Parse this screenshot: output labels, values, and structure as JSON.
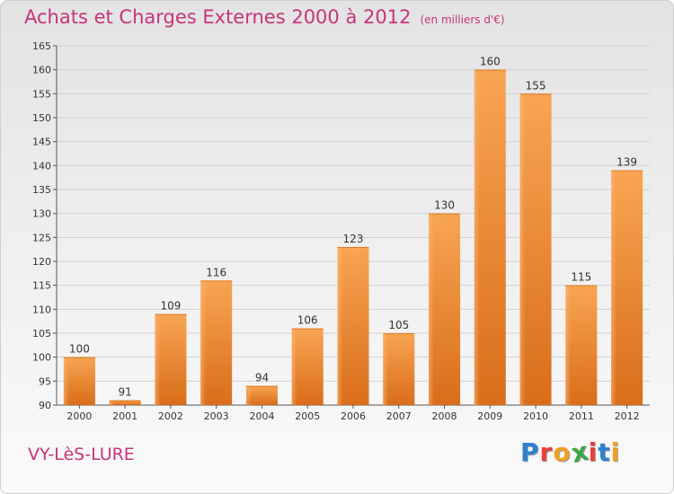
{
  "chart_data": {
    "type": "bar",
    "title": "Achats et Charges Externes 2000 à 2012",
    "subtitle": "(en milliers d'€)",
    "xlabel": "",
    "ylabel": "",
    "categories": [
      "2000",
      "2001",
      "2002",
      "2003",
      "2004",
      "2005",
      "2006",
      "2007",
      "2008",
      "2009",
      "2010",
      "2011",
      "2012"
    ],
    "values": [
      100,
      91,
      109,
      116,
      94,
      106,
      123,
      105,
      130,
      160,
      155,
      115,
      139
    ],
    "ylim": [
      90,
      165
    ],
    "yticks": [
      90,
      95,
      100,
      105,
      110,
      115,
      120,
      125,
      130,
      135,
      140,
      145,
      150,
      155,
      160,
      165
    ],
    "grid": true,
    "data_labels": true,
    "bar_color": "#f08a30"
  },
  "place": "VY-LèS-LURE",
  "logo": {
    "text": "Proxiti",
    "colors": [
      "#2f7fd0",
      "#e8403a",
      "#f0a020",
      "#3aa845",
      "#e8403a",
      "#2f7fd0",
      "#f0a020"
    ]
  }
}
